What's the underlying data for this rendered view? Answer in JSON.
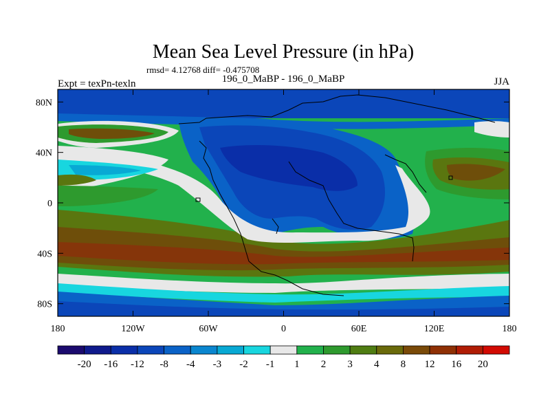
{
  "chart_data": {
    "type": "heatmap",
    "title": "Mean Sea Level Pressure (in hPa)",
    "stats": "rmsd= 4.12768 diff= -0.475708",
    "left_label": "Expt = texPn-texln",
    "center_label": "196_0_MaBP - 196_0_MaBP",
    "right_label": "JJA",
    "x_ticks": [
      "180",
      "120W",
      "60W",
      "0",
      "60E",
      "120E",
      "180"
    ],
    "y_ticks": [
      "80N",
      "40N",
      "0",
      "40S",
      "80S"
    ],
    "xlim": [
      -180,
      180
    ],
    "ylim": [
      -90,
      90
    ],
    "colorbar_levels": [
      "-20",
      "-16",
      "-12",
      "-8",
      "-4",
      "-3",
      "-2",
      "-1",
      "1",
      "2",
      "3",
      "4",
      "8",
      "12",
      "16",
      "20"
    ],
    "colorbar_colors": [
      "#1b0a6e",
      "#0f1a8c",
      "#0a2ea8",
      "#0b46b9",
      "#0a62c7",
      "#0a86cf",
      "#08a9d4",
      "#18d6df",
      "#e8e8e8",
      "#22b14c",
      "#2e9a2e",
      "#4f7d12",
      "#6a6a0a",
      "#7a4a08",
      "#8f3004",
      "#b01c04",
      "#d20a02"
    ]
  }
}
